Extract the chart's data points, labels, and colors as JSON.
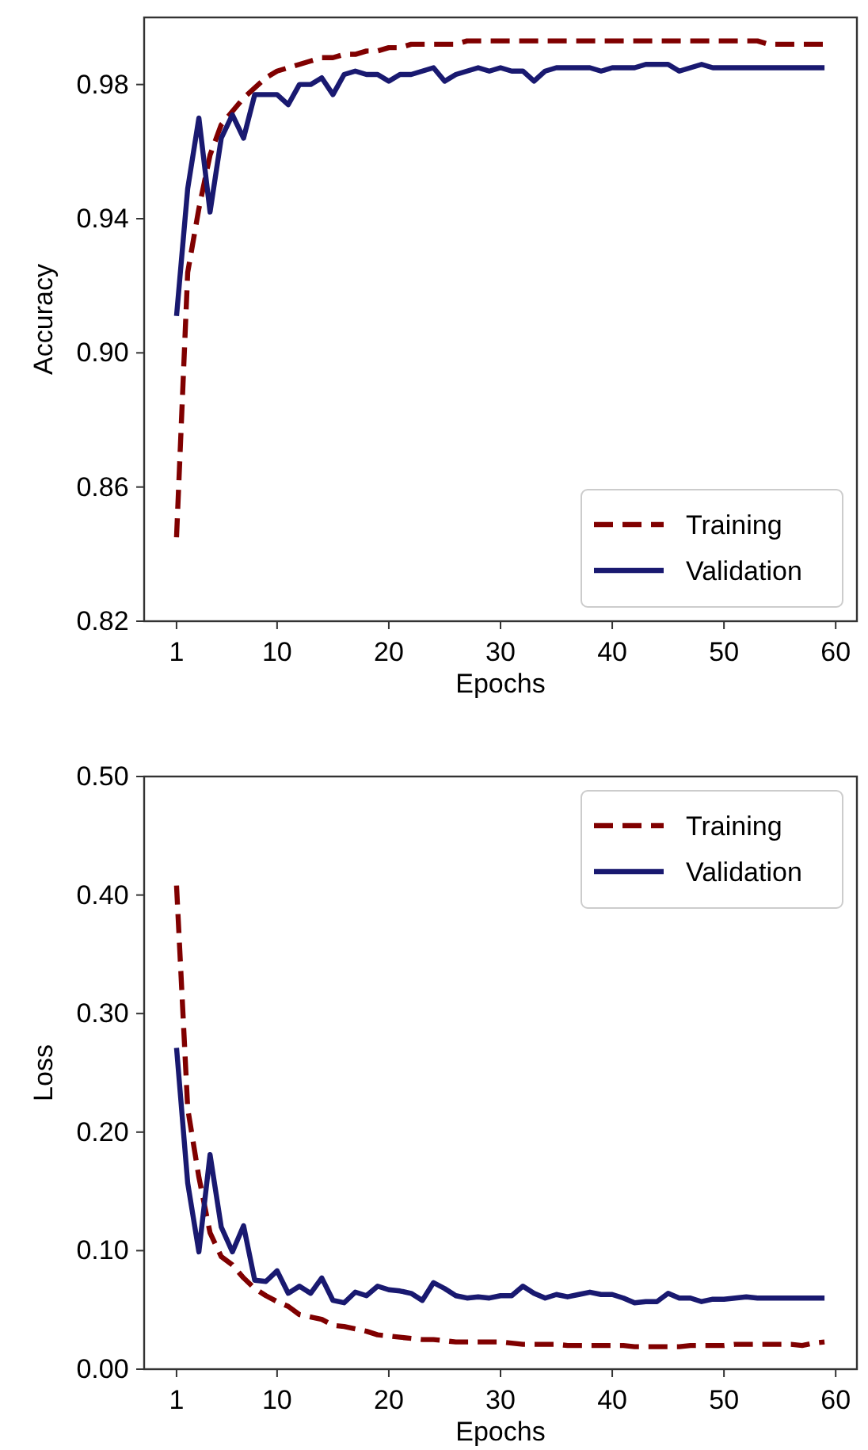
{
  "chart_data": [
    {
      "type": "line",
      "xlabel": "Epochs",
      "ylabel": "Accuracy",
      "xlim": [
        -1.9,
        61.9
      ],
      "xticks": [
        1,
        10,
        20,
        30,
        40,
        50,
        60
      ],
      "ylim": [
        0.82,
        1.0
      ],
      "yticks": [
        0.82,
        0.86,
        {
          "value": 0.9,
          "label": "0.90"
        },
        0.94,
        0.98
      ],
      "grid": false,
      "legend": "bottom right",
      "marker": "none",
      "x": [
        1,
        2,
        3,
        4,
        5,
        6,
        7,
        8,
        9,
        10,
        11,
        12,
        13,
        14,
        15,
        16,
        17,
        18,
        19,
        20,
        21,
        22,
        23,
        24,
        25,
        26,
        27,
        28,
        29,
        30,
        31,
        32,
        33,
        34,
        35,
        36,
        37,
        38,
        39,
        40,
        41,
        42,
        43,
        44,
        45,
        46,
        47,
        48,
        49,
        50,
        51,
        52,
        53,
        54,
        55,
        56,
        57,
        58,
        59
      ],
      "series": [
        {
          "name": "Training",
          "color": "#800000",
          "line_style": "dashed",
          "values": [
            0.845,
            0.924,
            0.943,
            0.959,
            0.968,
            0.972,
            0.976,
            0.979,
            0.982,
            0.984,
            0.985,
            0.986,
            0.987,
            0.988,
            0.988,
            0.989,
            0.989,
            0.99,
            0.99,
            0.991,
            0.991,
            0.992,
            0.992,
            0.992,
            0.992,
            0.992,
            0.993,
            0.993,
            0.993,
            0.993,
            0.993,
            0.993,
            0.993,
            0.993,
            0.993,
            0.993,
            0.993,
            0.993,
            0.993,
            0.993,
            0.993,
            0.993,
            0.993,
            0.993,
            0.993,
            0.993,
            0.993,
            0.993,
            0.993,
            0.993,
            0.993,
            0.993,
            0.993,
            0.992,
            0.992,
            0.992,
            0.992,
            0.992,
            0.992
          ]
        },
        {
          "name": "Validation",
          "color": "#191970",
          "line_style": "solid",
          "values": [
            0.911,
            0.949,
            0.97,
            0.942,
            0.964,
            0.971,
            0.964,
            0.977,
            0.977,
            0.977,
            0.974,
            0.98,
            0.98,
            0.982,
            0.977,
            0.983,
            0.984,
            0.983,
            0.983,
            0.981,
            0.983,
            0.983,
            0.984,
            0.985,
            0.981,
            0.983,
            0.984,
            0.985,
            0.984,
            0.985,
            0.984,
            0.984,
            0.981,
            0.984,
            0.985,
            0.985,
            0.985,
            0.985,
            0.984,
            0.985,
            0.985,
            0.985,
            0.986,
            0.986,
            0.986,
            0.984,
            0.985,
            0.986,
            0.985,
            0.985,
            0.985,
            0.985,
            0.985,
            0.985,
            0.985,
            0.985,
            0.985,
            0.985,
            0.985
          ]
        }
      ]
    },
    {
      "type": "line",
      "xlabel": "Epochs",
      "ylabel": "Loss",
      "xlim": [
        -1.9,
        61.9
      ],
      "xticks": [
        1,
        10,
        20,
        30,
        40,
        50,
        60
      ],
      "ylim": [
        0,
        0.5
      ],
      "yticks": [
        {
          "value": 0,
          "label": "0.00"
        },
        {
          "value": 0.1,
          "label": "0.10"
        },
        {
          "value": 0.2,
          "label": "0.20"
        },
        {
          "value": 0.3,
          "label": "0.30"
        },
        {
          "value": 0.4,
          "label": "0.40"
        },
        {
          "value": 0.5,
          "label": "0.50"
        }
      ],
      "grid": false,
      "legend": "top right",
      "marker": "none",
      "x": [
        1,
        2,
        3,
        4,
        5,
        6,
        7,
        8,
        9,
        10,
        11,
        12,
        13,
        14,
        15,
        16,
        17,
        18,
        19,
        20,
        21,
        22,
        23,
        24,
        25,
        26,
        27,
        28,
        29,
        30,
        31,
        32,
        33,
        34,
        35,
        36,
        37,
        38,
        39,
        40,
        41,
        42,
        43,
        44,
        45,
        46,
        47,
        48,
        49,
        50,
        51,
        52,
        53,
        54,
        55,
        56,
        57,
        58,
        59
      ],
      "series": [
        {
          "name": "Training",
          "color": "#800000",
          "line_style": "dashed",
          "values": [
            0.408,
            0.22,
            0.162,
            0.115,
            0.095,
            0.088,
            0.077,
            0.068,
            0.062,
            0.057,
            0.053,
            0.046,
            0.044,
            0.042,
            0.037,
            0.036,
            0.034,
            0.032,
            0.029,
            0.028,
            0.027,
            0.026,
            0.025,
            0.025,
            0.024,
            0.023,
            0.023,
            0.023,
            0.023,
            0.023,
            0.022,
            0.021,
            0.021,
            0.021,
            0.021,
            0.02,
            0.02,
            0.02,
            0.02,
            0.02,
            0.02,
            0.019,
            0.019,
            0.019,
            0.019,
            0.019,
            0.02,
            0.02,
            0.02,
            0.02,
            0.021,
            0.021,
            0.021,
            0.021,
            0.021,
            0.021,
            0.02,
            0.022,
            0.023
          ]
        },
        {
          "name": "Validation",
          "color": "#191970",
          "line_style": "solid",
          "values": [
            0.271,
            0.157,
            0.099,
            0.181,
            0.12,
            0.099,
            0.121,
            0.075,
            0.074,
            0.083,
            0.064,
            0.07,
            0.064,
            0.077,
            0.058,
            0.056,
            0.065,
            0.062,
            0.07,
            0.067,
            0.066,
            0.064,
            0.058,
            0.073,
            0.068,
            0.062,
            0.06,
            0.061,
            0.06,
            0.062,
            0.062,
            0.07,
            0.064,
            0.06,
            0.063,
            0.061,
            0.063,
            0.065,
            0.063,
            0.063,
            0.06,
            0.056,
            0.057,
            0.057,
            0.064,
            0.06,
            0.06,
            0.057,
            0.059,
            0.059,
            0.06,
            0.061,
            0.06,
            0.06,
            0.06,
            0.06,
            0.06,
            0.06,
            0.06
          ]
        }
      ]
    }
  ]
}
